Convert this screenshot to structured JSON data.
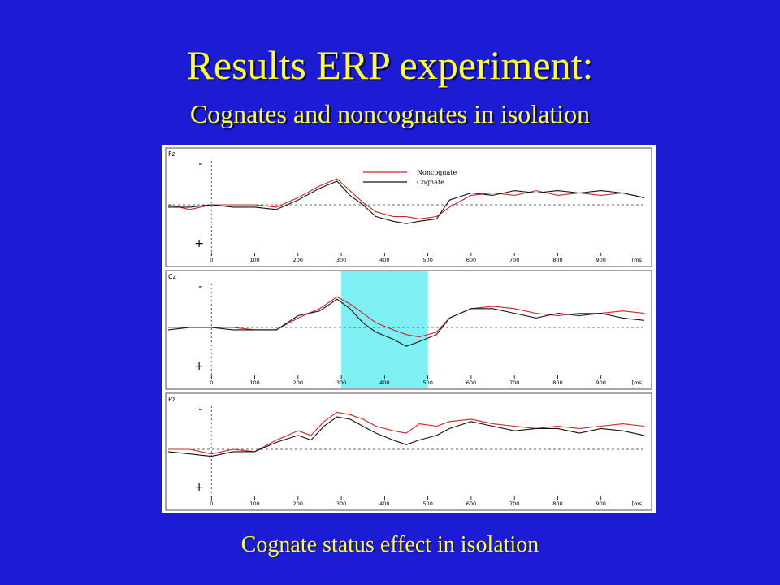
{
  "slide": {
    "title": "Results ERP experiment:",
    "subtitle": "Cognates and noncognates in isolation",
    "caption": "Cognate status effect in isolation"
  },
  "colors": {
    "background": "#1c1cd4",
    "text": "#ffff2a",
    "noncognate": "#d42020",
    "cognate": "#111111",
    "highlight": "#7ef0f4"
  },
  "chart_data": {
    "type": "line",
    "x_unit": "[ms]",
    "x_ticks": [
      0,
      100,
      200,
      300,
      400,
      500,
      600,
      700,
      800,
      900
    ],
    "xlim": [
      -100,
      1000
    ],
    "ylim": [
      -10,
      10
    ],
    "polarity": {
      "top": "-",
      "bottom": "+"
    },
    "legend": {
      "placement": "top",
      "entries": [
        "Noncognate",
        "Cognate"
      ]
    },
    "highlight_window": [
      300,
      500
    ],
    "highlight_channel": "Cz",
    "channels": [
      {
        "name": "Fz",
        "series": [
          {
            "name": "Noncognate",
            "color": "#d42020",
            "x": [
              -100,
              -50,
              0,
              50,
              100,
              150,
              200,
              250,
              290,
              320,
              350,
              380,
              420,
              450,
              480,
              520,
              550,
              600,
              650,
              700,
              750,
              800,
              850,
              900,
              950,
              1000
            ],
            "y": [
              0,
              1,
              0,
              0,
              0,
              0.5,
              -1.5,
              -4,
              -5.5,
              -3,
              -0.5,
              1.5,
              2.5,
              2.5,
              3,
              2.5,
              0.5,
              -2,
              -2.5,
              -2,
              -3,
              -2,
              -2.5,
              -2,
              -2.5,
              -1.5
            ]
          },
          {
            "name": "Cognate",
            "color": "#111111",
            "x": [
              -100,
              -50,
              0,
              50,
              100,
              150,
              200,
              250,
              290,
              320,
              350,
              380,
              420,
              450,
              480,
              520,
              550,
              600,
              650,
              700,
              750,
              800,
              850,
              900,
              950,
              1000
            ],
            "y": [
              0.5,
              0.5,
              0,
              0.5,
              0.5,
              1,
              -1,
              -3.5,
              -5,
              -2,
              0,
              2.5,
              3.5,
              4,
              3.5,
              3,
              -1,
              -2.5,
              -2,
              -3,
              -2.5,
              -3,
              -2.5,
              -3,
              -2.5,
              -1.5
            ]
          }
        ]
      },
      {
        "name": "Cz",
        "series": [
          {
            "name": "Noncognate",
            "color": "#d42020",
            "x": [
              -100,
              -50,
              0,
              50,
              100,
              150,
              200,
              250,
              290,
              320,
              350,
              380,
              420,
              450,
              480,
              520,
              550,
              600,
              650,
              700,
              750,
              800,
              850,
              900,
              950,
              1000
            ],
            "y": [
              0,
              0,
              0,
              0,
              0.5,
              0.5,
              -2,
              -4,
              -6.5,
              -5,
              -3,
              -1,
              0.5,
              1.5,
              2,
              1,
              -2,
              -4,
              -4.5,
              -4,
              -3,
              -2.5,
              -3,
              -3,
              -3.5,
              -3
            ]
          },
          {
            "name": "Cognate",
            "color": "#111111",
            "x": [
              -100,
              -50,
              0,
              50,
              100,
              150,
              200,
              250,
              290,
              320,
              350,
              380,
              420,
              450,
              480,
              520,
              550,
              600,
              650,
              700,
              750,
              800,
              850,
              900,
              950,
              1000
            ],
            "y": [
              0.5,
              0,
              0,
              0.5,
              0.5,
              0.5,
              -2.5,
              -3.5,
              -6,
              -4,
              -1,
              1,
              2.5,
              4,
              3,
              1.5,
              -2,
              -4,
              -4,
              -3,
              -2,
              -3,
              -2.5,
              -3,
              -2,
              -1.5
            ]
          }
        ]
      },
      {
        "name": "Pz",
        "series": [
          {
            "name": "Noncognate",
            "color": "#d42020",
            "x": [
              -100,
              -50,
              0,
              50,
              100,
              150,
              200,
              230,
              260,
              290,
              320,
              350,
              380,
              420,
              450,
              480,
              520,
              550,
              600,
              650,
              700,
              750,
              800,
              850,
              900,
              950,
              1000
            ],
            "y": [
              0,
              0,
              1,
              0,
              0.5,
              -2,
              -4,
              -3,
              -6,
              -8,
              -7.5,
              -6.5,
              -5,
              -4,
              -3.5,
              -5.5,
              -5,
              -6,
              -6.5,
              -5.5,
              -5,
              -4.5,
              -5,
              -4.5,
              -5,
              -5.5,
              -5
            ]
          },
          {
            "name": "Cognate",
            "color": "#111111",
            "x": [
              -100,
              -50,
              0,
              50,
              100,
              150,
              200,
              230,
              260,
              290,
              320,
              350,
              380,
              420,
              450,
              480,
              520,
              550,
              600,
              650,
              700,
              750,
              800,
              850,
              900,
              950,
              1000
            ],
            "y": [
              0.5,
              1,
              1.5,
              0.5,
              0.5,
              -1.5,
              -3,
              -2,
              -5,
              -7,
              -6.5,
              -5,
              -3.5,
              -2,
              -1,
              -2,
              -3,
              -4.5,
              -6,
              -5,
              -4,
              -4.5,
              -4.5,
              -3.5,
              -4.5,
              -4,
              -3
            ]
          }
        ]
      }
    ]
  }
}
